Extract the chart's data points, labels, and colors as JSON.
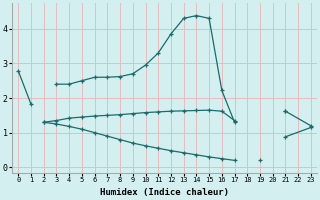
{
  "xlabel": "Humidex (Indice chaleur)",
  "bg_color": "#d4eff0",
  "line_color": "#1a6b6b",
  "grid_color": "#e8b4b8",
  "xlim": [
    -0.5,
    23.5
  ],
  "ylim": [
    -0.15,
    4.75
  ],
  "yticks": [
    0,
    1,
    2,
    3,
    4
  ],
  "xticks": [
    0,
    1,
    2,
    3,
    4,
    5,
    6,
    7,
    8,
    9,
    10,
    11,
    12,
    13,
    14,
    15,
    16,
    17,
    18,
    19,
    20,
    21,
    22,
    23
  ],
  "line1_segments": [
    {
      "x": [
        0,
        1
      ],
      "y": [
        2.78,
        1.82
      ]
    },
    {
      "x": [
        3,
        4,
        5,
        6,
        7,
        8,
        9,
        10,
        11,
        12,
        13,
        14,
        15,
        16,
        17
      ],
      "y": [
        2.4,
        2.4,
        2.5,
        2.6,
        2.6,
        2.62,
        2.7,
        2.95,
        3.3,
        3.85,
        4.3,
        4.38,
        4.3,
        2.22,
        1.3
      ]
    },
    {
      "x": [
        19
      ],
      "y": [
        0.22
      ]
    },
    {
      "x": [
        21
      ],
      "y": [
        1.62
      ]
    }
  ],
  "line2_segments": [
    {
      "x": [
        2,
        3,
        4,
        5,
        6,
        7,
        8,
        9,
        10,
        11,
        12,
        13,
        14,
        15,
        16,
        17
      ],
      "y": [
        1.3,
        1.35,
        1.42,
        1.45,
        1.48,
        1.5,
        1.52,
        1.55,
        1.58,
        1.6,
        1.62,
        1.63,
        1.64,
        1.65,
        1.62,
        1.35
      ]
    },
    {
      "x": [
        21,
        23
      ],
      "y": [
        1.62,
        1.2
      ]
    }
  ],
  "line3_segments": [
    {
      "x": [
        2,
        3,
        4,
        5,
        6,
        7,
        8,
        9,
        10,
        11,
        12,
        13,
        14,
        15,
        16,
        17
      ],
      "y": [
        1.3,
        1.25,
        1.18,
        1.1,
        1.0,
        0.9,
        0.8,
        0.7,
        0.62,
        0.55,
        0.48,
        0.42,
        0.36,
        0.3,
        0.25,
        0.2
      ]
    },
    {
      "x": [
        21,
        23
      ],
      "y": [
        0.88,
        1.15
      ]
    }
  ]
}
